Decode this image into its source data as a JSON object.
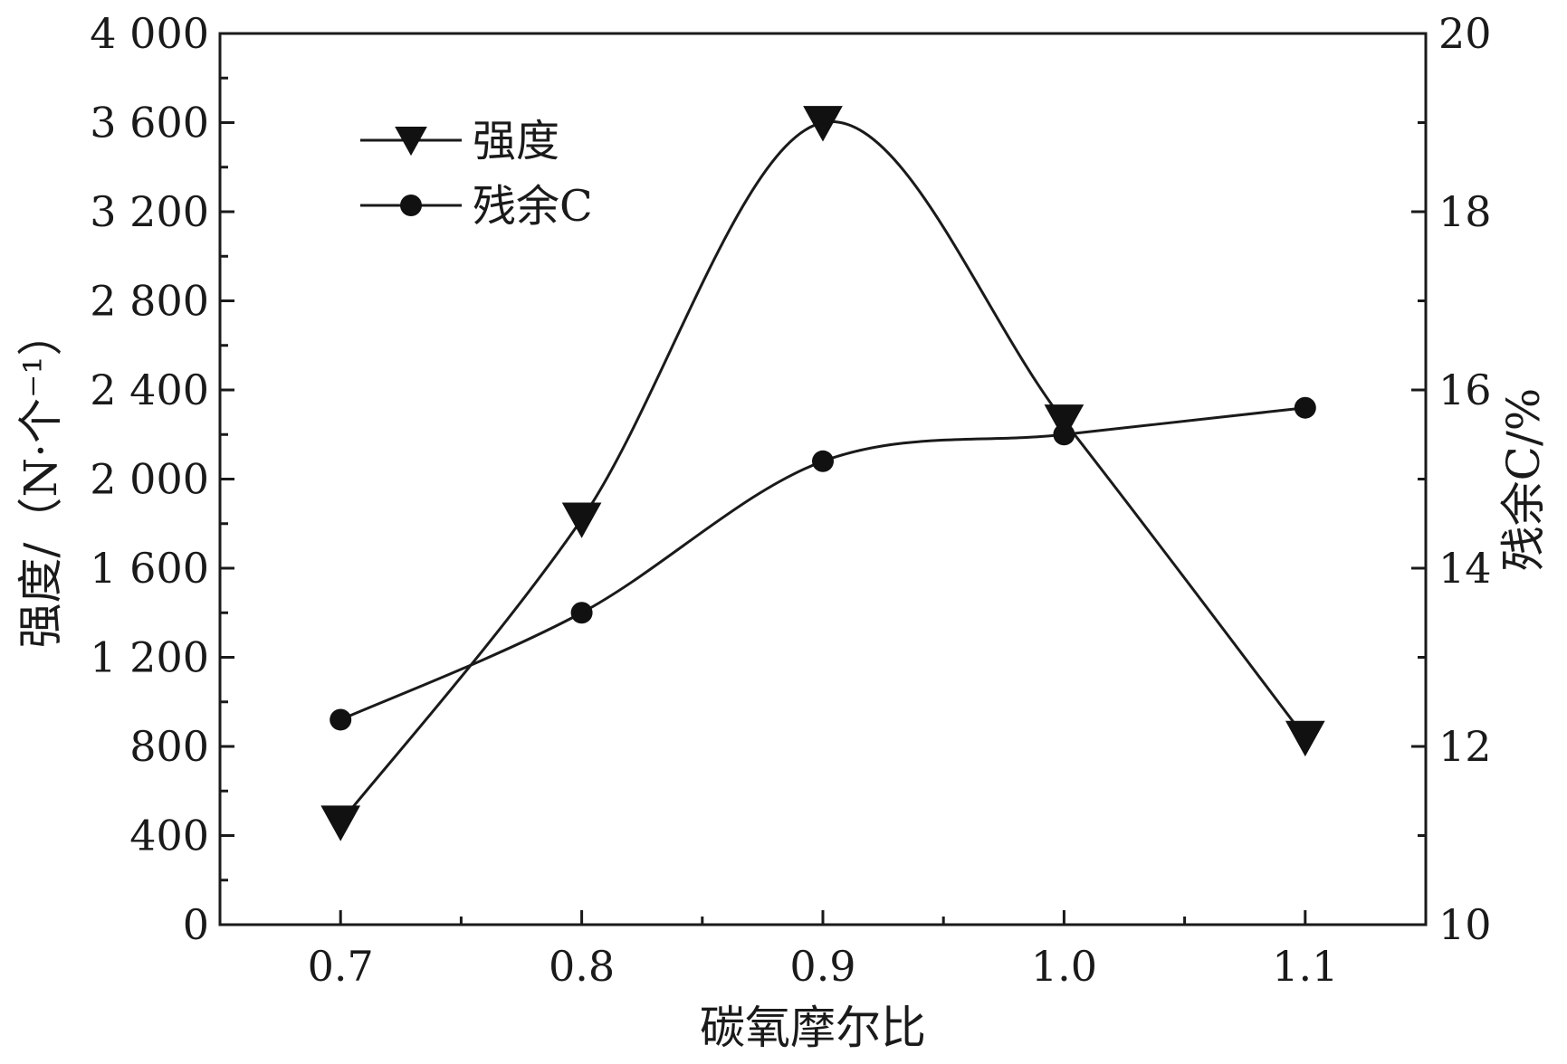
{
  "chart_data": {
    "type": "line",
    "xlabel": "碳氧摩尔比",
    "ylabel": "强度/（N·个⁻¹）",
    "y2label": "残余C/%",
    "x": [
      0.7,
      0.8,
      0.9,
      1.0,
      1.1
    ],
    "xlim": [
      0.65,
      1.15
    ],
    "ylim": [
      0,
      4000
    ],
    "y2lim": [
      10,
      20
    ],
    "x_ticks": [
      "0.7",
      "0.8",
      "0.9",
      "1.0",
      "1.1"
    ],
    "y_ticks": [
      "0",
      "400",
      "800",
      "1 200",
      "1 600",
      "2 000",
      "2 400",
      "2 800",
      "3 200",
      "3 600",
      "4 000"
    ],
    "y2_ticks": [
      "10",
      "12",
      "14",
      "16",
      "18",
      "20"
    ],
    "legend_position": "top-left",
    "grid": false,
    "series": [
      {
        "name": "强度",
        "axis": "left",
        "marker": "triangle-down",
        "values": [
          460,
          1820,
          3600,
          2260,
          840
        ]
      },
      {
        "name": "残余C",
        "axis": "right",
        "marker": "circle",
        "values": [
          12.3,
          13.5,
          15.2,
          15.5,
          15.8
        ]
      }
    ]
  }
}
